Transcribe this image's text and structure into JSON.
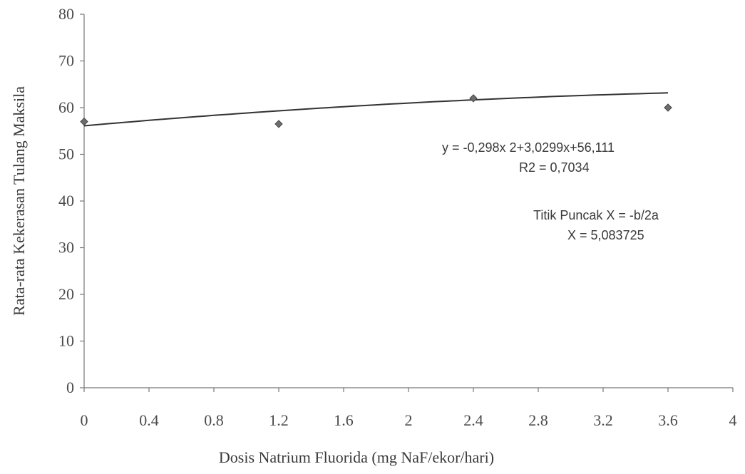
{
  "chart_data": {
    "type": "scatter",
    "xlabel": "Dosis Natrium Fluorida (mg NaF/ekor/hari)",
    "ylabel": "Rata-rata Kekerasan Tulang Maksila",
    "xlim": [
      0,
      4
    ],
    "ylim": [
      0,
      80
    ],
    "x_ticks": [
      "0",
      "0.4",
      "0.8",
      "1.2",
      "1.6",
      "2",
      "2.4",
      "2.8",
      "3.2",
      "3.6",
      "4"
    ],
    "y_ticks": [
      "0",
      "10",
      "20",
      "30",
      "40",
      "50",
      "60",
      "70",
      "80"
    ],
    "series": [
      {
        "points": [
          {
            "x": 0,
            "y": 57
          },
          {
            "x": 1.2,
            "y": 56.5
          },
          {
            "x": 2.4,
            "y": 62
          },
          {
            "x": 3.6,
            "y": 60
          }
        ]
      }
    ],
    "trendline": {
      "type": "polynomial",
      "a": -0.298,
      "b": 3.0299,
      "c": 56.111
    },
    "equation_label": "y = -0,298x 2+3,0299x+56,111",
    "r2_label": "R2 = 0,7034",
    "peak_label": "Titik Puncak X = -b/2a",
    "peak_value_label": "X = 5,083725",
    "grid": false,
    "legend": "none"
  }
}
